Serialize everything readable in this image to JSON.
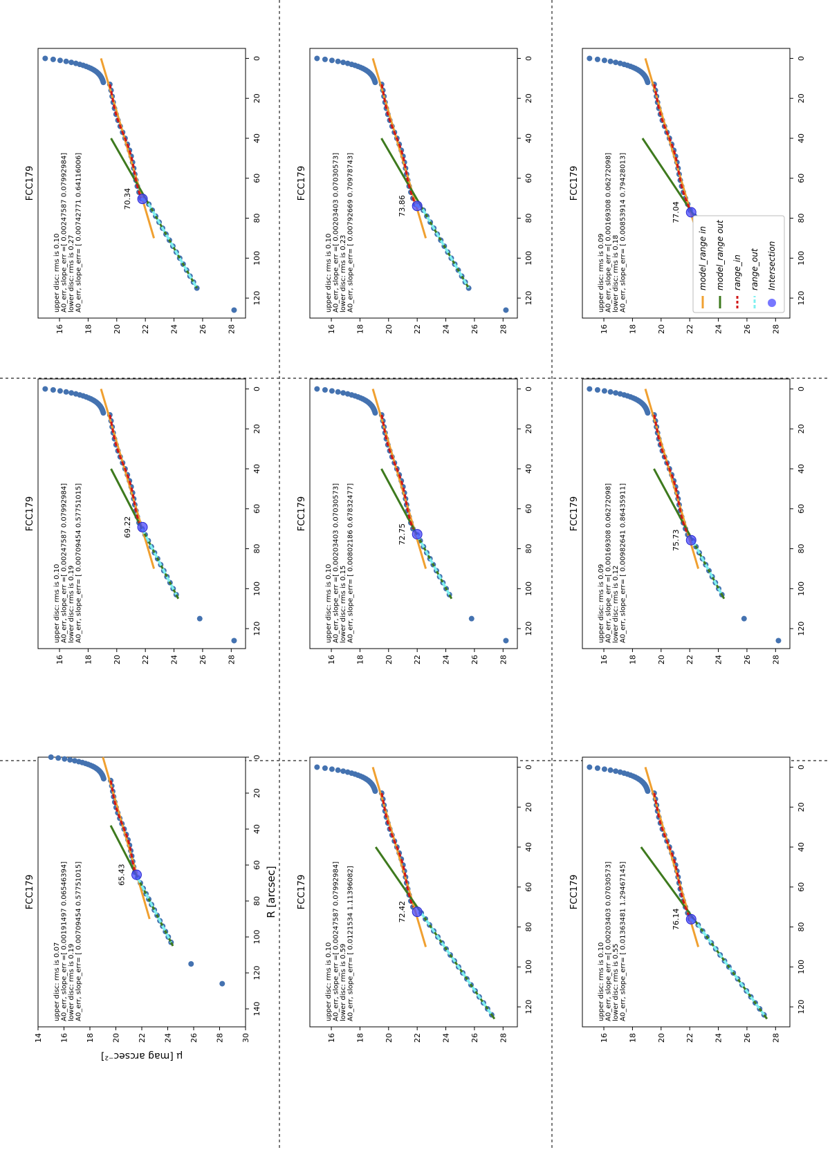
{
  "figure": {
    "y_axis_label": "μ [mag arcsec⁻²]",
    "x_axis_label": "R [arcsec]",
    "legend": {
      "model_in": "model",
      "model_in_sub": "range",
      "model_in_subsub": "in",
      "model_out": "model",
      "model_out_sub": "range",
      "model_out_subsub": "out",
      "range_in": "range",
      "range_in_sub": "in",
      "range_out": "range",
      "range_out_sub": "out",
      "intersection": "Intersection"
    },
    "colors": {
      "data": "#4472b0",
      "model_in": "#f0a030",
      "model_out": "#3e7a1e",
      "range_in": "#d01818",
      "range_out": "#7ff0f0",
      "intersection": "#4a4aff"
    }
  },
  "chart_data": [
    {
      "type": "scatter",
      "title": "FCC179",
      "xlim": [
        0,
        150
      ],
      "ylim": [
        14,
        30
      ],
      "xticks": [
        "0",
        "20",
        "40",
        "60",
        "80",
        "100",
        "120",
        "140"
      ],
      "yticks": [
        "14",
        "16",
        "18",
        "20",
        "22",
        "24",
        "26",
        "28",
        "30"
      ],
      "info": [
        "upper disc: rms is 0.07",
        "A0_err, slope_err =[ 0.00191497  0.06546394]",
        "lower disc: rms is 0.19",
        "A0_err, slope_err= [ 0.00709454  0.57751015]"
      ],
      "intersection": {
        "x": 65.43,
        "y": 21.6,
        "label": "65.43"
      },
      "model_in": {
        "x": [
          0,
          90
        ],
        "y": [
          19.0,
          22.6
        ]
      },
      "model_out": {
        "x": [
          38,
          105
        ],
        "y": [
          19.6,
          24.4
        ]
      },
      "range_out_x": [
        65,
        105
      ],
      "extra_points": [
        [
          115,
          25.8
        ],
        [
          126,
          28.2
        ]
      ],
      "show_x_label": true,
      "show_y_label": true
    },
    {
      "type": "scatter",
      "title": "FCC179",
      "xlim": [
        -5,
        130
      ],
      "ylim": [
        14.5,
        29
      ],
      "xticks": [
        "0",
        "20",
        "40",
        "60",
        "80",
        "100",
        "120"
      ],
      "yticks": [
        "16",
        "18",
        "20",
        "22",
        "24",
        "26",
        "28"
      ],
      "info": [
        "upper disc: rms is 0.10",
        "A0_err, slope_err =[ 0.00247587  0.07992984]",
        "lower disc: rms is 0.19",
        "A0_err, slope_err= [ 0.00709454  0.57751015]"
      ],
      "intersection": {
        "x": 69.22,
        "y": 21.8,
        "label": "69.22"
      },
      "model_in": {
        "x": [
          0,
          90
        ],
        "y": [
          18.9,
          22.6
        ]
      },
      "model_out": {
        "x": [
          40,
          105
        ],
        "y": [
          19.6,
          24.3
        ]
      },
      "range_out_x": [
        69,
        105
      ],
      "extra_points": [
        [
          115,
          25.8
        ],
        [
          126,
          28.2
        ]
      ]
    },
    {
      "type": "scatter",
      "title": "FCC179",
      "xlim": [
        -5,
        130
      ],
      "ylim": [
        14.5,
        29
      ],
      "xticks": [
        "0",
        "20",
        "40",
        "60",
        "80",
        "100",
        "120"
      ],
      "yticks": [
        "16",
        "18",
        "20",
        "22",
        "24",
        "26",
        "28"
      ],
      "info": [
        "upper disc: rms is 0.10",
        "A0_err, slope_err =[ 0.00247587  0.07992984]",
        "lower disc: rms is 0.27",
        "A0_err, slope_err= [ 0.00742771  0.64116006]"
      ],
      "intersection": {
        "x": 70.34,
        "y": 21.8,
        "label": "70.34"
      },
      "model_in": {
        "x": [
          0,
          90
        ],
        "y": [
          18.9,
          22.6
        ]
      },
      "model_out": {
        "x": [
          40,
          115
        ],
        "y": [
          19.6,
          25.6
        ]
      },
      "range_out_x": [
        70,
        115
      ],
      "extra_points": [
        [
          126,
          28.2
        ]
      ]
    },
    {
      "type": "scatter",
      "title": "FCC179",
      "xlim": [
        -5,
        130
      ],
      "ylim": [
        14.5,
        29
      ],
      "xticks": [
        "0",
        "20",
        "40",
        "60",
        "80",
        "100",
        "120"
      ],
      "yticks": [
        "16",
        "18",
        "20",
        "22",
        "24",
        "26",
        "28"
      ],
      "info": [
        "upper disc: rms is 0.10",
        "A0_err, slope_err =[ 0.00247587  0.07992984]",
        "lower disc: rms is 0.59",
        "A0_err, slope_err= [ 0.0121534   1.11396082]"
      ],
      "intersection": {
        "x": 72.42,
        "y": 22.0,
        "label": "72.42"
      },
      "model_in": {
        "x": [
          0,
          90
        ],
        "y": [
          18.9,
          22.6
        ]
      },
      "model_out": {
        "x": [
          40,
          126
        ],
        "y": [
          19.1,
          27.4
        ]
      },
      "range_out_x": [
        72,
        126
      ],
      "extra_points": []
    },
    {
      "type": "scatter",
      "title": "FCC179",
      "xlim": [
        -5,
        130
      ],
      "ylim": [
        14.5,
        29
      ],
      "xticks": [
        "0",
        "20",
        "40",
        "60",
        "80",
        "100",
        "120"
      ],
      "yticks": [
        "16",
        "18",
        "20",
        "22",
        "24",
        "26",
        "28"
      ],
      "info": [
        "upper disc: rms is 0.10",
        "A0_err, slope_err =[ 0.00203403  0.07030573]",
        "lower disc: rms is 0.15",
        "A0_err, slope_err= [ 0.00802186  0.67832477]"
      ],
      "intersection": {
        "x": 72.75,
        "y": 22.0,
        "label": "72.75"
      },
      "model_in": {
        "x": [
          0,
          90
        ],
        "y": [
          18.9,
          22.6
        ]
      },
      "model_out": {
        "x": [
          40,
          105
        ],
        "y": [
          19.5,
          24.4
        ]
      },
      "range_out_x": [
        72,
        105
      ],
      "extra_points": [
        [
          115,
          25.8
        ],
        [
          126,
          28.2
        ]
      ]
    },
    {
      "type": "scatter",
      "title": "FCC179",
      "xlim": [
        -5,
        130
      ],
      "ylim": [
        14.5,
        29
      ],
      "xticks": [
        "0",
        "20",
        "40",
        "60",
        "80",
        "100",
        "120"
      ],
      "yticks": [
        "16",
        "18",
        "20",
        "22",
        "24",
        "26",
        "28"
      ],
      "info": [
        "upper disc: rms is 0.10",
        "A0_err, slope_err =[ 0.00203403  0.07030573]",
        "lower disc: rms is 0.23",
        "A0_err, slope_err= [ 0.00792669  0.70978743]"
      ],
      "intersection": {
        "x": 73.86,
        "y": 22.0,
        "label": "73.86"
      },
      "model_in": {
        "x": [
          0,
          90
        ],
        "y": [
          18.9,
          22.6
        ]
      },
      "model_out": {
        "x": [
          40,
          115
        ],
        "y": [
          19.5,
          25.6
        ]
      },
      "range_out_x": [
        73,
        115
      ],
      "extra_points": [
        [
          126,
          28.2
        ]
      ]
    },
    {
      "type": "scatter",
      "title": "FCC179",
      "xlim": [
        -5,
        130
      ],
      "ylim": [
        14.5,
        29
      ],
      "xticks": [
        "0",
        "20",
        "40",
        "60",
        "80",
        "100",
        "120"
      ],
      "yticks": [
        "16",
        "18",
        "20",
        "22",
        "24",
        "26",
        "28"
      ],
      "info": [
        "upper disc: rms is 0.10",
        "A0_err, slope_err =[ 0.00203403  0.07030573]",
        "lower disc: rms is 0.55",
        "A0_err, slope_err= [ 0.01363481  1.29467145]"
      ],
      "intersection": {
        "x": 76.14,
        "y": 22.1,
        "label": "76.14"
      },
      "model_in": {
        "x": [
          0,
          90
        ],
        "y": [
          18.9,
          22.6
        ]
      },
      "model_out": {
        "x": [
          40,
          126
        ],
        "y": [
          18.6,
          27.4
        ]
      },
      "range_out_x": [
        76,
        126
      ],
      "extra_points": []
    },
    {
      "type": "scatter",
      "title": "FCC179",
      "xlim": [
        -5,
        130
      ],
      "ylim": [
        14.5,
        29
      ],
      "xticks": [
        "0",
        "20",
        "40",
        "60",
        "80",
        "100",
        "120"
      ],
      "yticks": [
        "16",
        "18",
        "20",
        "22",
        "24",
        "26",
        "28"
      ],
      "info": [
        "upper disc: rms is 0.09",
        "A0_err, slope_err =[ 0.00169308  0.06272098]",
        "lower disc: rms is 0.12",
        "A0_err, slope_err= [ 0.00982641  0.86435911]"
      ],
      "intersection": {
        "x": 75.73,
        "y": 22.1,
        "label": "75.73"
      },
      "model_in": {
        "x": [
          0,
          90
        ],
        "y": [
          18.9,
          22.6
        ]
      },
      "model_out": {
        "x": [
          40,
          105
        ],
        "y": [
          19.5,
          24.4
        ]
      },
      "range_out_x": [
        75,
        105
      ],
      "extra_points": [
        [
          115,
          25.8
        ],
        [
          126,
          28.2
        ]
      ]
    },
    {
      "type": "scatter",
      "title": "FCC179",
      "xlim": [
        -5,
        130
      ],
      "ylim": [
        14.5,
        29
      ],
      "xticks": [
        "0",
        "20",
        "40",
        "60",
        "80",
        "100",
        "120"
      ],
      "yticks": [
        "16",
        "18",
        "20",
        "22",
        "24",
        "26",
        "28"
      ],
      "info": [
        "upper disc: rms is 0.09",
        "A0_err, slope_err =[ 0.00169308  0.06272098]",
        "lower disc: rms is 0.18",
        "A0_err, slope_err= [ 0.00853914  0.79428013]"
      ],
      "intersection": {
        "x": 77.04,
        "y": 22.1,
        "label": "77.04"
      },
      "model_in": {
        "x": [
          0,
          90
        ],
        "y": [
          18.9,
          22.6
        ]
      },
      "model_out": {
        "x": [
          40,
          115
        ],
        "y": [
          18.7,
          25.7
        ]
      },
      "range_out_x": [
        77,
        115
      ],
      "extra_points": [
        [
          126,
          28.2
        ]
      ],
      "show_legend": true
    }
  ]
}
